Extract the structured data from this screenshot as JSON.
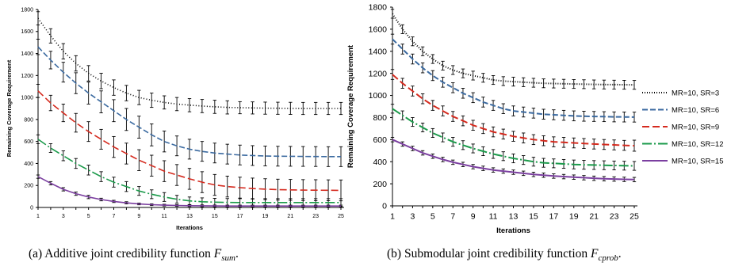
{
  "captions": {
    "a": {
      "text": "(a)  Additive joint credibility function ",
      "fn": "F",
      "sub": "sum",
      "end": "."
    },
    "b": {
      "text": "(b)  Submodular joint credibility function ",
      "fn": "F",
      "sub": "cprob",
      "end": "."
    }
  },
  "chart_data": [
    {
      "type": "line",
      "title": "",
      "xlabel": "Iterations",
      "ylabel": "Remaining Coverage Requirement",
      "xlim": [
        1,
        25
      ],
      "ylim": [
        0,
        1800
      ],
      "xticks": [
        "1",
        "3",
        "5",
        "7",
        "9",
        "11",
        "13",
        "15",
        "17",
        "19",
        "21",
        "23",
        "25"
      ],
      "yticks": [
        "0",
        "200",
        "400",
        "600",
        "800",
        "1000",
        "1200",
        "1400",
        "1600",
        "1800"
      ],
      "grid": false,
      "legend": "none",
      "x": [
        1,
        2,
        3,
        4,
        5,
        6,
        7,
        8,
        9,
        10,
        11,
        12,
        13,
        14,
        15,
        16,
        17,
        18,
        19,
        20,
        21,
        22,
        23,
        24,
        25
      ],
      "series": [
        {
          "color": "#000000",
          "dash": "1,2.5",
          "values": [
            1720,
            1560,
            1420,
            1310,
            1220,
            1150,
            1090,
            1040,
            1000,
            975,
            955,
            940,
            930,
            922,
            915,
            910,
            907,
            905,
            903,
            902,
            901,
            900,
            900,
            900,
            900
          ],
          "errors": [
            60,
            65,
            70,
            70,
            70,
            70,
            70,
            70,
            65,
            65,
            60,
            60,
            60,
            60,
            60,
            60,
            55,
            55,
            55,
            55,
            55,
            55,
            55,
            55,
            55
          ]
        },
        {
          "color": "#3b6aa0",
          "dash": "7,3",
          "values": [
            1460,
            1340,
            1230,
            1130,
            1040,
            960,
            880,
            800,
            730,
            660,
            600,
            560,
            530,
            510,
            495,
            485,
            477,
            472,
            468,
            466,
            465,
            464,
            463,
            462,
            462
          ],
          "errors": [
            70,
            80,
            90,
            95,
            100,
            100,
            100,
            100,
            100,
            100,
            95,
            90,
            90,
            90,
            90,
            90,
            90,
            90,
            90,
            90,
            90,
            90,
            90,
            90,
            90
          ]
        },
        {
          "color": "#d52a1e",
          "dash": "9,4",
          "values": [
            1060,
            950,
            860,
            770,
            690,
            620,
            550,
            490,
            430,
            380,
            330,
            295,
            260,
            230,
            205,
            190,
            180,
            172,
            166,
            162,
            160,
            158,
            157,
            156,
            155
          ],
          "errors": [
            60,
            70,
            80,
            85,
            90,
            90,
            95,
            95,
            95,
            95,
            95,
            95,
            95,
            95,
            95,
            95,
            95,
            95,
            95,
            95,
            95,
            95,
            95,
            95,
            95
          ]
        },
        {
          "color": "#1a9a4a",
          "dash": "12,3,2,3",
          "values": [
            620,
            540,
            470,
            400,
            340,
            280,
            230,
            190,
            150,
            120,
            95,
            75,
            60,
            52,
            48,
            46,
            45,
            45,
            45,
            45,
            45,
            45,
            45,
            45,
            45
          ],
          "errors": [
            40,
            40,
            45,
            45,
            45,
            45,
            45,
            45,
            40,
            40,
            40,
            35,
            35,
            35,
            35,
            35,
            35,
            35,
            35,
            35,
            35,
            35,
            35,
            35,
            35
          ]
        },
        {
          "color": "#7b3fa0",
          "dash": "",
          "values": [
            280,
            220,
            165,
            125,
            95,
            72,
            55,
            42,
            32,
            25,
            21,
            18,
            16,
            15,
            14,
            13,
            13,
            13,
            13,
            13,
            13,
            13,
            13,
            13,
            13
          ],
          "errors": [
            15,
            15,
            15,
            15,
            15,
            12,
            10,
            10,
            8,
            8,
            8,
            8,
            8,
            8,
            8,
            8,
            8,
            8,
            8,
            8,
            8,
            8,
            8,
            8,
            8
          ]
        }
      ]
    },
    {
      "type": "line",
      "title": "",
      "xlabel": "Iterations",
      "ylabel": "Remaining Coverage Requirement",
      "xlim": [
        1,
        25
      ],
      "ylim": [
        0,
        1800
      ],
      "xticks": [
        "1",
        "3",
        "5",
        "7",
        "9",
        "11",
        "13",
        "15",
        "17",
        "19",
        "21",
        "23",
        "25"
      ],
      "yticks": [
        "0",
        "200",
        "400",
        "600",
        "800",
        "1000",
        "1200",
        "1400",
        "1600",
        "1800"
      ],
      "grid": false,
      "legend": "right",
      "x": [
        1,
        2,
        3,
        4,
        5,
        6,
        7,
        8,
        9,
        10,
        11,
        12,
        13,
        14,
        15,
        16,
        17,
        18,
        19,
        20,
        21,
        22,
        23,
        24,
        25
      ],
      "series": [
        {
          "name": "MR=10, SR=3",
          "color": "#000000",
          "dash": "1,2",
          "values": [
            1740,
            1600,
            1490,
            1400,
            1330,
            1270,
            1230,
            1200,
            1180,
            1160,
            1140,
            1130,
            1125,
            1120,
            1115,
            1110,
            1108,
            1106,
            1104,
            1102,
            1100,
            1099,
            1098,
            1097,
            1096
          ],
          "errors": [
            40,
            40,
            40,
            40,
            40,
            40,
            40,
            40,
            40,
            40,
            40,
            40,
            40,
            40,
            40,
            40,
            40,
            40,
            40,
            40,
            40,
            40,
            40,
            40,
            40
          ]
        },
        {
          "name": "MR=10, SR=6",
          "color": "#3b6aa0",
          "dash": "7,3",
          "values": [
            1510,
            1420,
            1330,
            1250,
            1180,
            1120,
            1070,
            1020,
            980,
            940,
            910,
            880,
            860,
            850,
            840,
            830,
            825,
            820,
            815,
            812,
            810,
            808,
            806,
            805,
            804
          ],
          "errors": [
            45,
            45,
            45,
            45,
            45,
            45,
            45,
            45,
            45,
            45,
            45,
            45,
            45,
            45,
            45,
            45,
            45,
            45,
            45,
            45,
            45,
            45,
            45,
            45,
            45
          ]
        },
        {
          "name": "MR=10, SR=9",
          "color": "#d52a1e",
          "dash": "9,4",
          "values": [
            1190,
            1110,
            1040,
            970,
            910,
            860,
            810,
            770,
            730,
            700,
            670,
            650,
            630,
            615,
            600,
            590,
            580,
            575,
            570,
            565,
            560,
            556,
            552,
            548,
            545
          ],
          "errors": [
            45,
            45,
            45,
            45,
            45,
            45,
            45,
            45,
            45,
            45,
            45,
            45,
            45,
            45,
            45,
            45,
            45,
            45,
            45,
            45,
            45,
            45,
            45,
            45,
            50
          ]
        },
        {
          "name": "MR=10, SR=12",
          "color": "#1a9a4a",
          "dash": "12,3,2,3",
          "values": [
            880,
            820,
            760,
            710,
            660,
            620,
            580,
            550,
            520,
            495,
            470,
            450,
            430,
            415,
            400,
            390,
            385,
            380,
            375,
            372,
            370,
            368,
            366,
            364,
            362
          ],
          "errors": [
            40,
            40,
            40,
            40,
            40,
            40,
            40,
            40,
            40,
            40,
            40,
            40,
            40,
            40,
            40,
            40,
            40,
            40,
            40,
            40,
            40,
            40,
            40,
            40,
            40
          ]
        },
        {
          "name": "MR=10, SR=15",
          "color": "#7b3fa0",
          "dash": "",
          "values": [
            600,
            560,
            520,
            480,
            450,
            420,
            395,
            375,
            355,
            340,
            325,
            315,
            305,
            295,
            285,
            278,
            270,
            265,
            260,
            255,
            250,
            246,
            243,
            240,
            238
          ],
          "errors": [
            20,
            20,
            20,
            20,
            20,
            20,
            20,
            20,
            20,
            20,
            20,
            20,
            20,
            20,
            20,
            20,
            20,
            20,
            20,
            20,
            20,
            20,
            20,
            20,
            20
          ]
        }
      ]
    }
  ]
}
